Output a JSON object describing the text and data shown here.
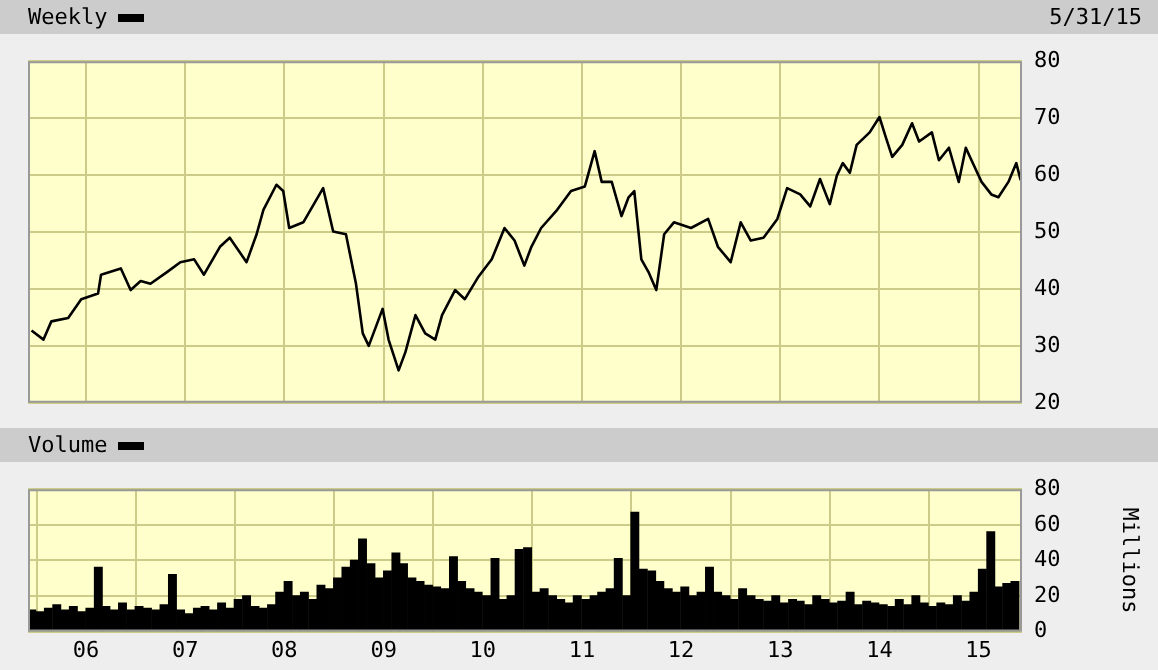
{
  "chart_data": [
    {
      "type": "line",
      "legend": "top left",
      "grid": true,
      "tick_labels": "y",
      "marker": "none",
      "annotations": [
        "5/31/15"
      ],
      "xlim": [
        "2005-06-01",
        "2015-06-10"
      ],
      "xticks": [
        {
          "value": "2006-01-01",
          "label": null
        },
        {
          "value": "2007-01-01",
          "label": null
        },
        {
          "value": "2008-01-01",
          "label": null
        },
        {
          "value": "2009-01-01",
          "label": null
        },
        {
          "value": "2010-01-01",
          "label": null
        },
        {
          "value": "2011-01-01",
          "label": null
        },
        {
          "value": "2012-01-01",
          "label": null
        },
        {
          "value": "2013-01-01",
          "label": null
        },
        {
          "value": "2014-01-01",
          "label": null
        },
        {
          "value": "2015-01-01",
          "label": null
        }
      ],
      "ylim": [
        20,
        80
      ],
      "yticks": [
        20,
        30,
        40,
        50,
        60,
        70,
        80
      ],
      "series": [
        {
          "name": "Weekly",
          "color": "#000000",
          "x": [
            "2005-06-14",
            "2005-07-28",
            "2005-08-26",
            "2005-10-27",
            "2005-12-14",
            "2006-02-14",
            "2006-02-25",
            "2006-05-09",
            "2006-06-14",
            "2006-07-21",
            "2006-08-26",
            "2006-10-27",
            "2006-12-14",
            "2007-02-03",
            "2007-03-11",
            "2007-05-09",
            "2007-06-14",
            "2007-08-15",
            "2007-09-21",
            "2007-10-16",
            "2007-12-03",
            "2007-12-28",
            "2008-01-19",
            "2008-03-11",
            "2008-05-23",
            "2008-06-29",
            "2008-08-15",
            "2008-09-21",
            "2008-10-16",
            "2008-11-07",
            "2008-12-28",
            "2009-01-19",
            "2009-02-25",
            "2009-03-22",
            "2009-04-28",
            "2009-06-03",
            "2009-07-10",
            "2009-08-04",
            "2009-09-21",
            "2009-10-27",
            "2009-12-14",
            "2010-02-03",
            "2010-03-22",
            "2010-04-28",
            "2010-06-03",
            "2010-06-29",
            "2010-08-04",
            "2010-10-02",
            "2010-11-22",
            "2011-01-12",
            "2011-02-17",
            "2011-03-15",
            "2011-04-21",
            "2011-05-27",
            "2011-06-22",
            "2011-07-13",
            "2011-08-08",
            "2011-09-03",
            "2011-10-02",
            "2011-10-31",
            "2011-12-06",
            "2012-02-07",
            "2012-04-10",
            "2012-05-16",
            "2012-07-02",
            "2012-08-08",
            "2012-09-14",
            "2012-10-31",
            "2012-12-21",
            "2013-01-26",
            "2013-03-15",
            "2013-04-21",
            "2013-05-27",
            "2013-07-02",
            "2013-07-28",
            "2013-08-19",
            "2013-09-14",
            "2013-10-09",
            "2013-11-26",
            "2014-01-01",
            "2014-01-26",
            "2014-02-17",
            "2014-03-26",
            "2014-05-01",
            "2014-05-27",
            "2014-07-13",
            "2014-08-08",
            "2014-09-14",
            "2014-10-20",
            "2014-11-15",
            "2014-12-06",
            "2015-01-12",
            "2015-02-17",
            "2015-03-15",
            "2015-04-21",
            "2015-05-20",
            "2015-06-05"
          ],
          "values": [
            32.7,
            31.1,
            34.3,
            34.9,
            38.2,
            39.2,
            42.5,
            43.6,
            39.8,
            41.4,
            40.9,
            43.0,
            44.7,
            45.2,
            42.5,
            47.4,
            49.0,
            44.7,
            49.6,
            53.9,
            58.3,
            57.2,
            50.7,
            51.7,
            57.7,
            50.1,
            49.6,
            40.9,
            32.2,
            30.0,
            36.5,
            31.1,
            25.7,
            28.9,
            35.4,
            32.2,
            31.1,
            35.4,
            39.8,
            38.2,
            42.0,
            45.2,
            50.7,
            48.5,
            44.1,
            47.4,
            50.7,
            53.9,
            57.2,
            58.0,
            64.2,
            58.8,
            58.8,
            52.8,
            56.1,
            57.2,
            45.2,
            43.0,
            39.8,
            49.6,
            51.7,
            50.7,
            52.3,
            47.4,
            44.7,
            51.7,
            48.5,
            49.0,
            52.3,
            57.7,
            56.6,
            54.5,
            59.3,
            54.9,
            59.9,
            62.1,
            60.4,
            65.3,
            67.5,
            70.2,
            66.4,
            63.2,
            65.3,
            69.1,
            65.9,
            67.5,
            62.6,
            64.8,
            58.8,
            64.8,
            62.6,
            58.8,
            56.6,
            56.1,
            58.8,
            62.1,
            59.1
          ]
        }
      ]
    },
    {
      "type": "bar",
      "legend": "top left",
      "grid": true,
      "ylabel": "Millions",
      "xlim": [
        "2005-06-01",
        "2015-06-10"
      ],
      "xticks": [
        {
          "value": "2006-01-01",
          "label": "06"
        },
        {
          "value": "2007-01-01",
          "label": "07"
        },
        {
          "value": "2008-01-01",
          "label": "08"
        },
        {
          "value": "2009-01-01",
          "label": "09"
        },
        {
          "value": "2010-01-01",
          "label": "10"
        },
        {
          "value": "2011-01-01",
          "label": "11"
        },
        {
          "value": "2012-01-01",
          "label": "12"
        },
        {
          "value": "2013-01-01",
          "label": "13"
        },
        {
          "value": "2014-01-01",
          "label": "14"
        },
        {
          "value": "2015-01-01",
          "label": "15"
        }
      ],
      "ylim": [
        0,
        80
      ],
      "yticks": [
        0,
        20,
        40,
        60,
        80
      ],
      "series": [
        {
          "name": "Volume",
          "color": "#000000",
          "x": [
            "2005-06-15",
            "2005-07-15",
            "2005-08-15",
            "2005-09-15",
            "2005-10-15",
            "2005-11-15",
            "2005-12-15",
            "2006-01-15",
            "2006-02-15",
            "2006-03-15",
            "2006-04-15",
            "2006-05-15",
            "2006-06-15",
            "2006-07-15",
            "2006-08-15",
            "2006-09-15",
            "2006-10-15",
            "2006-11-15",
            "2006-12-15",
            "2007-01-15",
            "2007-02-15",
            "2007-03-15",
            "2007-04-15",
            "2007-05-15",
            "2007-06-15",
            "2007-07-15",
            "2007-08-15",
            "2007-09-15",
            "2007-10-15",
            "2007-11-15",
            "2007-12-15",
            "2008-01-15",
            "2008-02-15",
            "2008-03-15",
            "2008-04-15",
            "2008-05-15",
            "2008-06-15",
            "2008-07-15",
            "2008-08-15",
            "2008-09-15",
            "2008-10-15",
            "2008-11-15",
            "2008-12-15",
            "2009-01-15",
            "2009-02-15",
            "2009-03-15",
            "2009-04-15",
            "2009-05-15",
            "2009-06-15",
            "2009-07-15",
            "2009-08-15",
            "2009-09-15",
            "2009-10-15",
            "2009-11-15",
            "2009-12-15",
            "2010-01-15",
            "2010-02-15",
            "2010-03-15",
            "2010-04-15",
            "2010-05-15",
            "2010-06-15",
            "2010-07-15",
            "2010-08-15",
            "2010-09-15",
            "2010-10-15",
            "2010-11-15",
            "2010-12-15",
            "2011-01-15",
            "2011-02-15",
            "2011-03-15",
            "2011-04-15",
            "2011-05-15",
            "2011-06-15",
            "2011-07-15",
            "2011-08-15",
            "2011-09-15",
            "2011-10-15",
            "2011-11-15",
            "2011-12-15",
            "2012-01-15",
            "2012-02-15",
            "2012-03-15",
            "2012-04-15",
            "2012-05-15",
            "2012-06-15",
            "2012-07-15",
            "2012-08-15",
            "2012-09-15",
            "2012-10-15",
            "2012-11-15",
            "2012-12-15",
            "2013-01-15",
            "2013-02-15",
            "2013-03-15",
            "2013-04-15",
            "2013-05-15",
            "2013-06-15",
            "2013-07-15",
            "2013-08-15",
            "2013-09-15",
            "2013-10-15",
            "2013-11-15",
            "2013-12-15",
            "2014-01-15",
            "2014-02-15",
            "2014-03-15",
            "2014-04-15",
            "2014-05-15",
            "2014-06-15",
            "2014-07-15",
            "2014-08-15",
            "2014-09-15",
            "2014-10-15",
            "2014-11-15",
            "2014-12-15",
            "2015-01-15",
            "2015-02-15",
            "2015-03-15",
            "2015-04-15",
            "2015-05-15"
          ],
          "values": [
            12,
            11,
            13,
            15,
            12,
            14,
            11,
            13,
            36,
            14,
            12,
            16,
            12,
            14,
            13,
            12,
            15,
            32,
            12,
            10,
            13,
            14,
            12,
            16,
            13,
            18,
            20,
            14,
            13,
            15,
            22,
            28,
            20,
            22,
            18,
            26,
            24,
            30,
            36,
            40,
            52,
            38,
            30,
            34,
            44,
            38,
            30,
            28,
            26,
            25,
            24,
            42,
            28,
            24,
            22,
            20,
            41,
            18,
            20,
            46,
            47,
            22,
            24,
            20,
            18,
            16,
            20,
            18,
            20,
            22,
            24,
            41,
            20,
            67,
            35,
            34,
            28,
            24,
            22,
            25,
            20,
            22,
            36,
            22,
            20,
            18,
            24,
            20,
            18,
            17,
            20,
            16,
            18,
            17,
            15,
            20,
            18,
            16,
            17,
            22,
            15,
            17,
            16,
            15,
            14,
            18,
            15,
            20,
            16,
            14,
            16,
            15,
            20,
            17,
            22,
            35,
            56,
            25,
            27,
            28
          ]
        }
      ]
    }
  ]
}
